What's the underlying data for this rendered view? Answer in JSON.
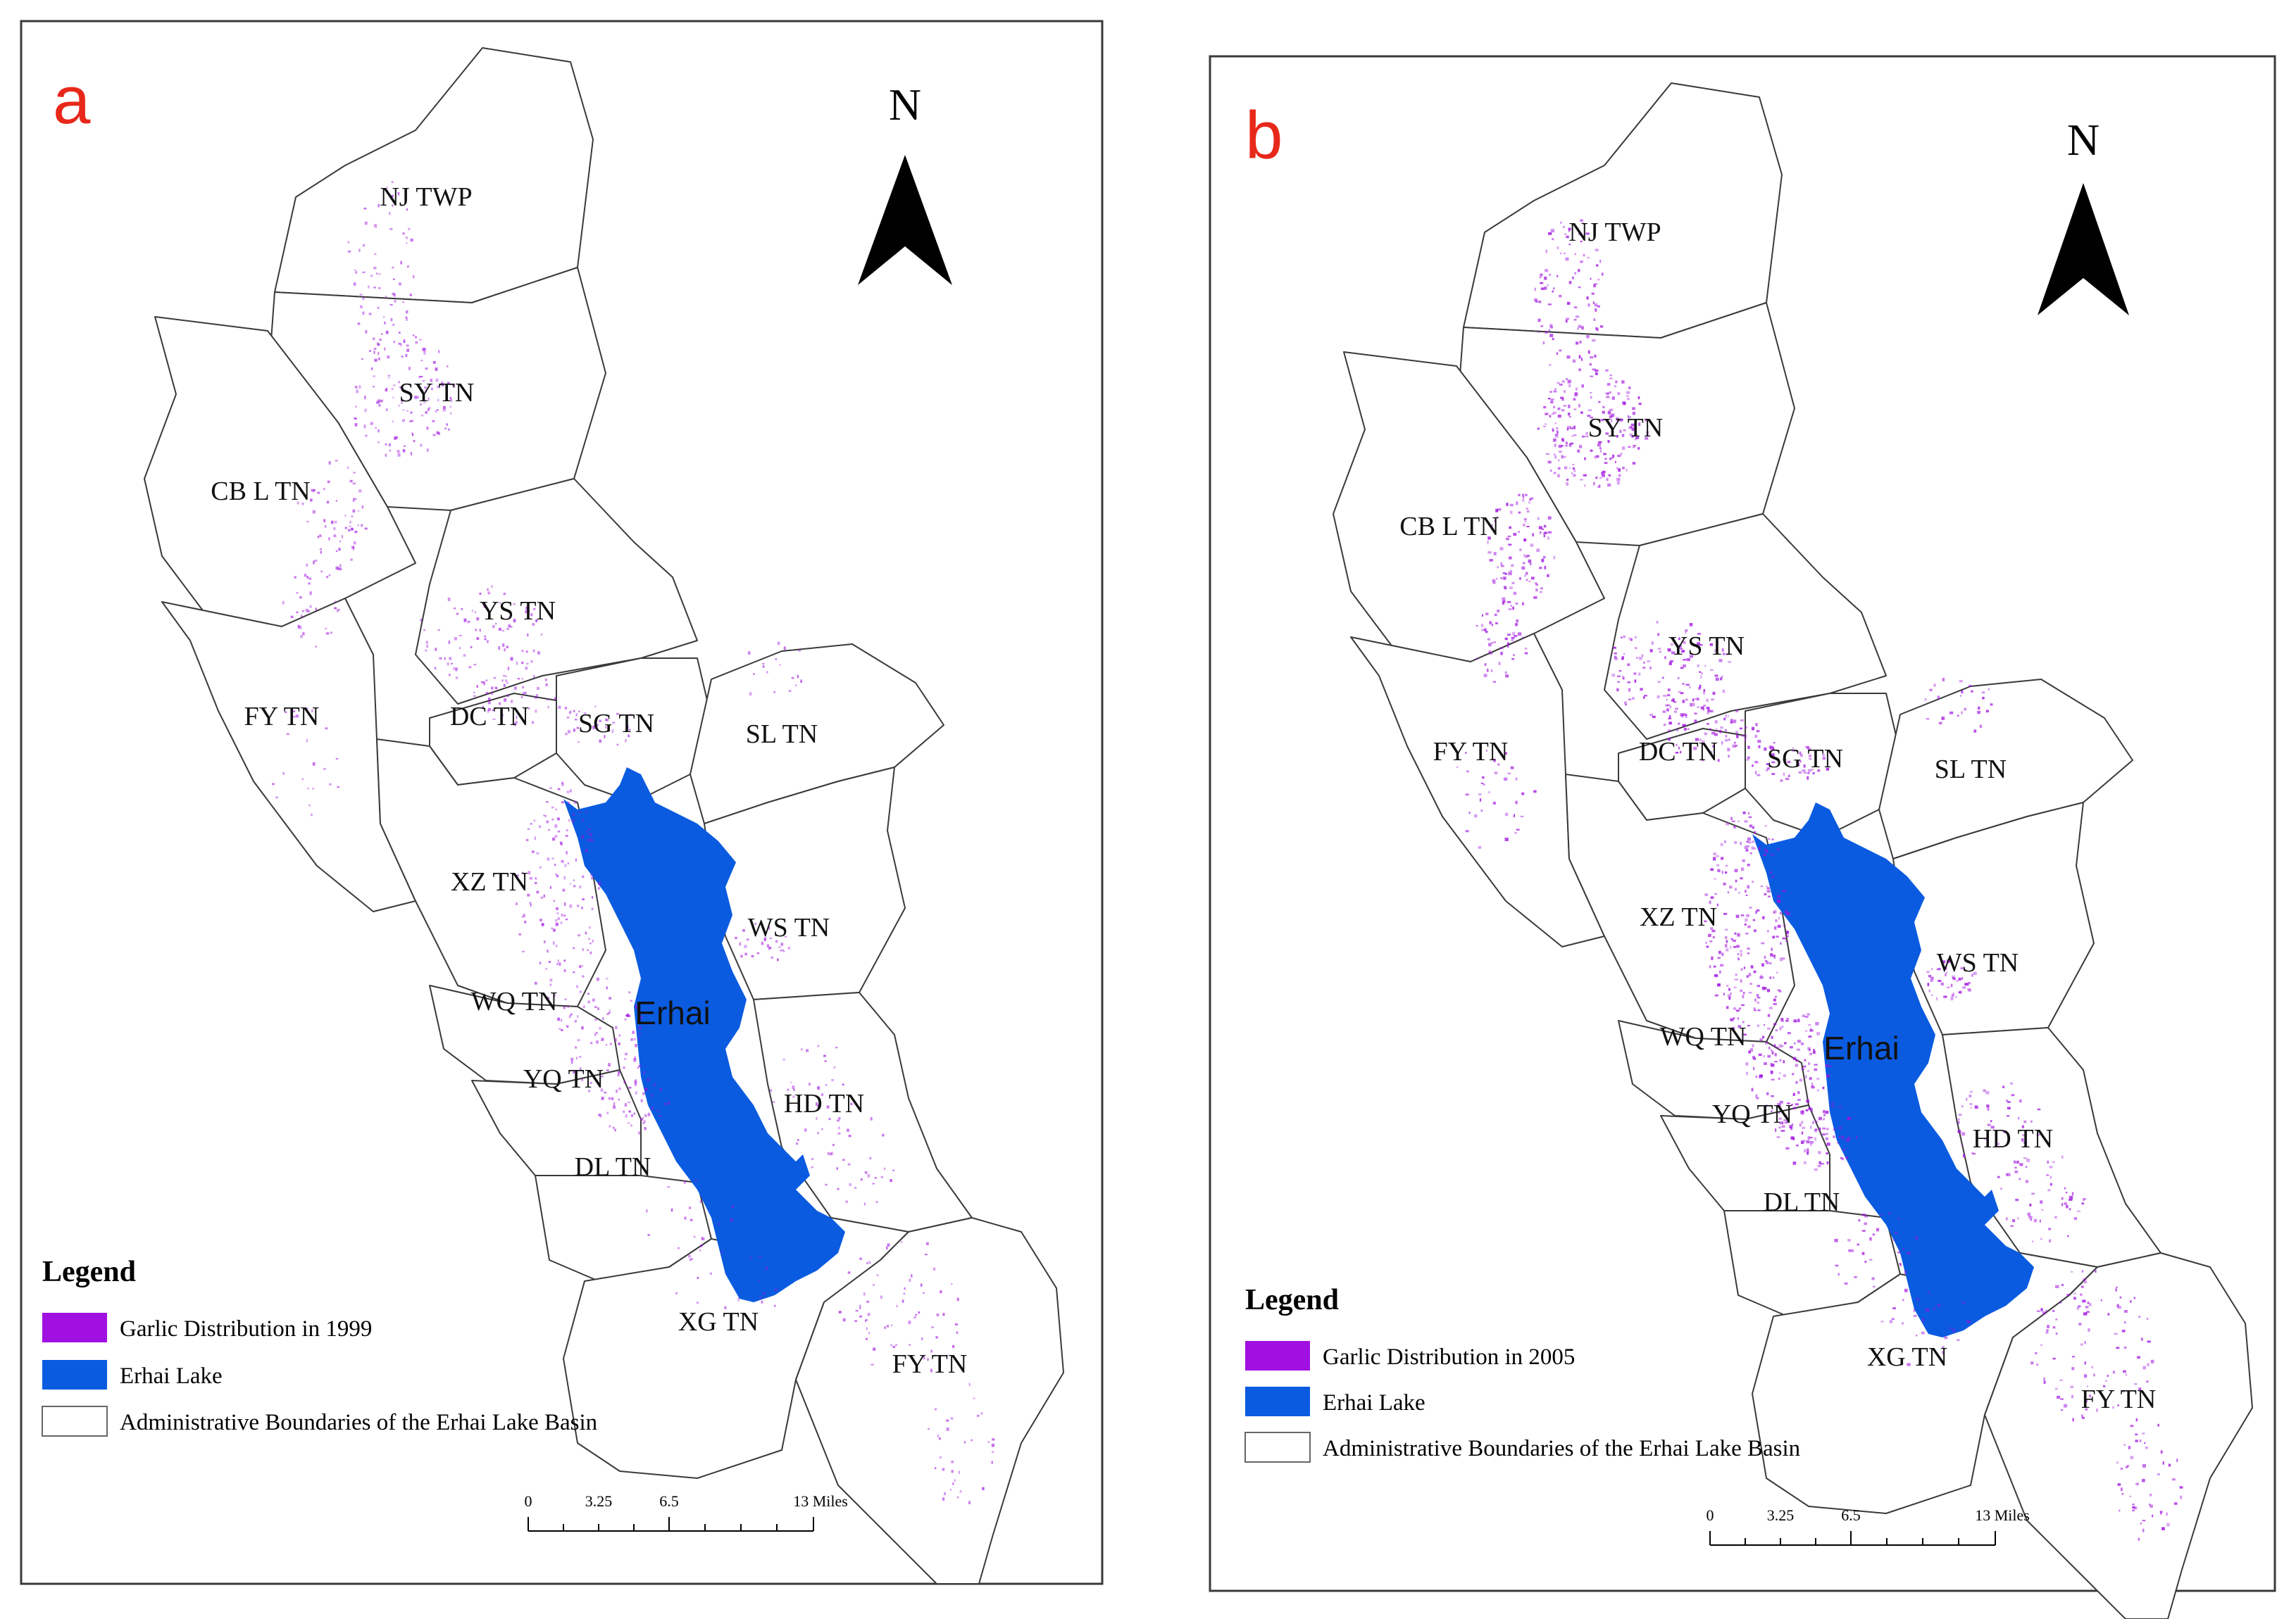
{
  "colors": {
    "garlic": "#a010e0",
    "lake": "#0a5be0",
    "panel_letter": "#e8281a"
  },
  "lake_label": "Erhai",
  "north_label": "N",
  "districts": [
    "NJ TWP",
    "SY TN",
    "CB L TN",
    "YS TN",
    "FY TN",
    "DC TN",
    "SG TN",
    "SL TN",
    "XZ TN",
    "WS TN",
    "WQ TN",
    "YQ TN",
    "HD TN",
    "DL TN",
    "XG TN",
    "FY TN"
  ],
  "panels": [
    {
      "letter": "a",
      "legend": {
        "title": "Legend",
        "items": [
          {
            "label": "Garlic Distribution in 1999",
            "swatch": "garlic"
          },
          {
            "label": "Erhai Lake",
            "swatch": "lake"
          },
          {
            "label": "Administrative Boundaries of the Erhai Lake Basin",
            "swatch": "boundary"
          }
        ]
      },
      "scale": {
        "ticks": [
          "0",
          "3.25",
          "6.5",
          "13 Miles"
        ]
      },
      "garlic_density": 0.55
    },
    {
      "letter": "b",
      "legend": {
        "title": "Legend",
        "items": [
          {
            "label": "Garlic Distribution in 2005",
            "swatch": "garlic"
          },
          {
            "label": "Erhai Lake",
            "swatch": "lake"
          },
          {
            "label": "Administrative Boundaries of the Erhai Lake Basin",
            "swatch": "boundary"
          }
        ]
      },
      "scale": {
        "ticks": [
          "0",
          "3.25",
          "6.5",
          "13 Miles"
        ]
      },
      "garlic_density": 0.85
    }
  ]
}
